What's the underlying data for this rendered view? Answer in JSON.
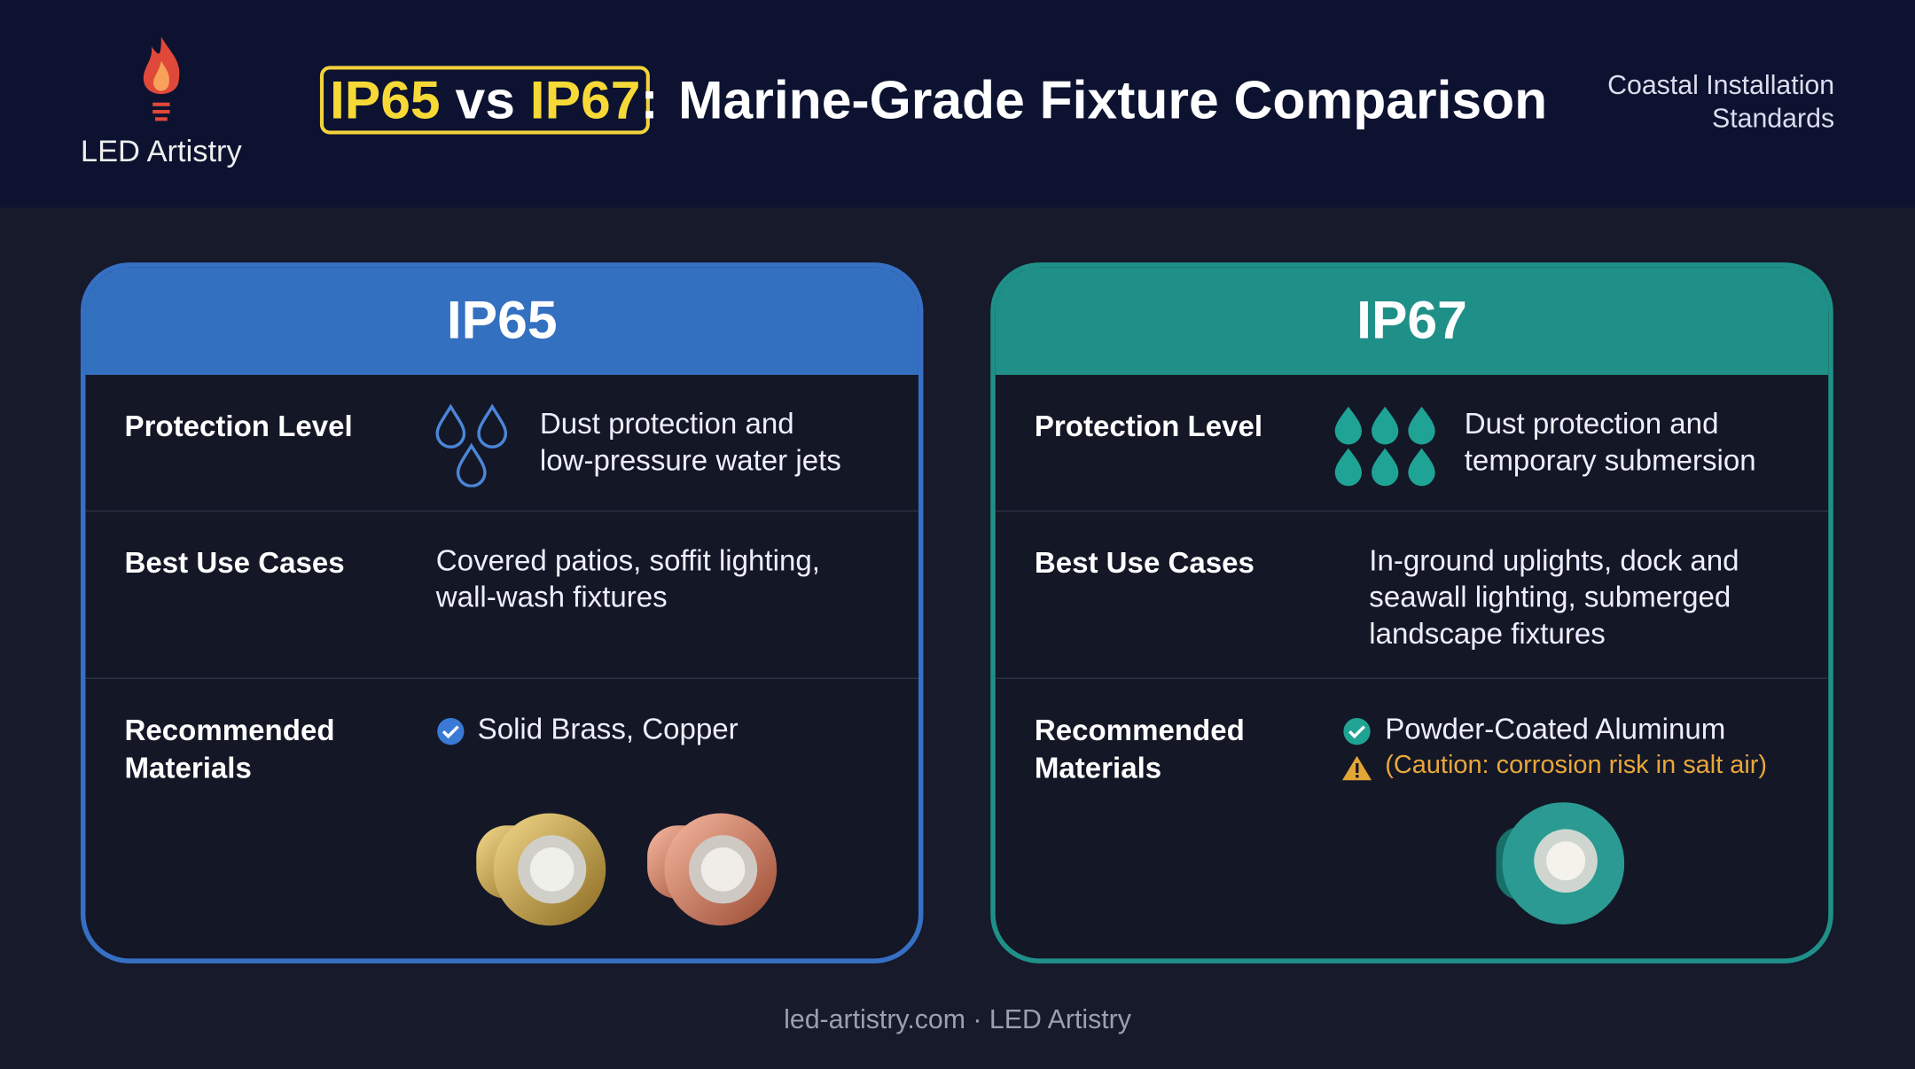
{
  "header": {
    "logo_text": "LED Artistry",
    "title_a": "IP65",
    "title_vs": "vs",
    "title_b": "IP67",
    "title_colon": ":",
    "title_rest": "Marine-Grade Fixture Comparison",
    "subtitle_line1": "Coastal Installation",
    "subtitle_line2": "Standards"
  },
  "cards": [
    {
      "title": "IP65",
      "rows": [
        {
          "label": "Protection Level",
          "text_line1": "Dust protection and",
          "text_line2": "low-pressure water jets"
        },
        {
          "label": "Best Use Cases",
          "text_line1": "Covered patios, soffit lighting,",
          "text_line2": "wall-wash fixtures"
        },
        {
          "label_line1": "Recommended",
          "label_line2": "Materials",
          "material": "Solid Brass, Copper"
        }
      ]
    },
    {
      "title": "IP67",
      "rows": [
        {
          "label": "Protection Level",
          "text_line1": "Dust protection and",
          "text_line2": "temporary submersion"
        },
        {
          "label": "Best Use Cases",
          "text_line1": "In-ground uplights, dock and",
          "text_line2": "seawall lighting, submerged",
          "text_line3": "landscape fixtures"
        },
        {
          "label_line1": "Recommended",
          "label_line2": "Materials",
          "material": "Powder-Coated Aluminum",
          "caution": "(Caution: corrosion risk in salt air)"
        }
      ]
    }
  ],
  "footer": "led-artistry.com · LED Artistry"
}
